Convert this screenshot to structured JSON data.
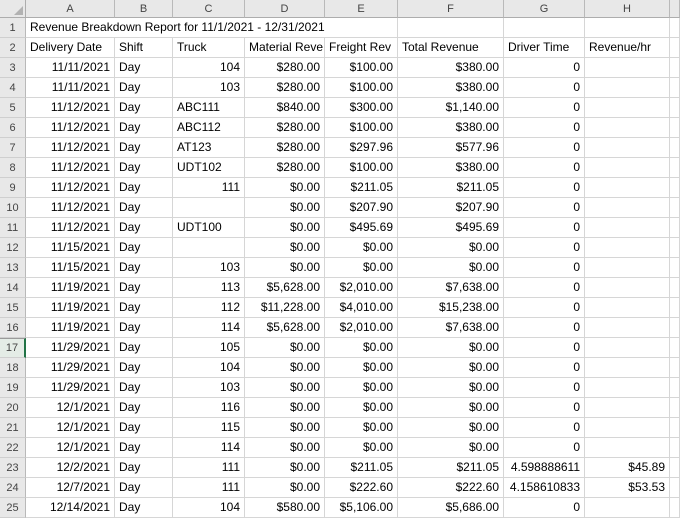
{
  "sheet": {
    "active_row": 17,
    "column_letters": [
      "A",
      "B",
      "C",
      "D",
      "E",
      "F",
      "G",
      "H"
    ],
    "title": "Revenue Breakdown Report for 11/1/2021 - 12/31/2021",
    "header_cells": [
      "Delivery Date",
      "Shift",
      "Truck",
      "Material Reve",
      "Freight Rev",
      "Total Revenue",
      "Driver Time",
      "Revenue/hr"
    ],
    "colors": {
      "grid_line": "#d6d6d6",
      "header_bg": "#e8e8e8",
      "active_green": "#217346"
    },
    "rows": [
      {
        "n": 1,
        "type": "title",
        "cells": [
          "Revenue Breakdown Report for 11/1/2021 - 12/31/2021"
        ]
      },
      {
        "n": 2,
        "type": "header",
        "cells": [
          "Delivery Date",
          "Shift",
          "Truck",
          "Material Reve",
          "Freight Rev",
          "Total Revenue",
          "Driver Time",
          "Revenue/hr"
        ]
      },
      {
        "n": 3,
        "type": "data",
        "cells": [
          "11/11/2021",
          "Day",
          "104",
          "$280.00",
          "$100.00",
          "$380.00",
          "0",
          ""
        ]
      },
      {
        "n": 4,
        "type": "data",
        "cells": [
          "11/11/2021",
          "Day",
          "103",
          "$280.00",
          "$100.00",
          "$380.00",
          "0",
          ""
        ]
      },
      {
        "n": 5,
        "type": "data",
        "cells": [
          "11/12/2021",
          "Day",
          "ABC111",
          "$840.00",
          "$300.00",
          "$1,140.00",
          "0",
          ""
        ]
      },
      {
        "n": 6,
        "type": "data",
        "cells": [
          "11/12/2021",
          "Day",
          "ABC112",
          "$280.00",
          "$100.00",
          "$380.00",
          "0",
          ""
        ]
      },
      {
        "n": 7,
        "type": "data",
        "cells": [
          "11/12/2021",
          "Day",
          "AT123",
          "$280.00",
          "$297.96",
          "$577.96",
          "0",
          ""
        ]
      },
      {
        "n": 8,
        "type": "data",
        "cells": [
          "11/12/2021",
          "Day",
          "UDT102",
          "$280.00",
          "$100.00",
          "$380.00",
          "0",
          ""
        ]
      },
      {
        "n": 9,
        "type": "data",
        "cells": [
          "11/12/2021",
          "Day",
          "111",
          "$0.00",
          "$211.05",
          "$211.05",
          "0",
          ""
        ]
      },
      {
        "n": 10,
        "type": "data",
        "cells": [
          "11/12/2021",
          "Day",
          "",
          "$0.00",
          "$207.90",
          "$207.90",
          "0",
          ""
        ]
      },
      {
        "n": 11,
        "type": "data",
        "cells": [
          "11/12/2021",
          "Day",
          "UDT100",
          "$0.00",
          "$495.69",
          "$495.69",
          "0",
          ""
        ]
      },
      {
        "n": 12,
        "type": "data",
        "cells": [
          "11/15/2021",
          "Day",
          "",
          "$0.00",
          "$0.00",
          "$0.00",
          "0",
          ""
        ]
      },
      {
        "n": 13,
        "type": "data",
        "cells": [
          "11/15/2021",
          "Day",
          "103",
          "$0.00",
          "$0.00",
          "$0.00",
          "0",
          ""
        ]
      },
      {
        "n": 14,
        "type": "data",
        "cells": [
          "11/19/2021",
          "Day",
          "113",
          "$5,628.00",
          "$2,010.00",
          "$7,638.00",
          "0",
          ""
        ]
      },
      {
        "n": 15,
        "type": "data",
        "cells": [
          "11/19/2021",
          "Day",
          "112",
          "$11,228.00",
          "$4,010.00",
          "$15,238.00",
          "0",
          ""
        ]
      },
      {
        "n": 16,
        "type": "data",
        "cells": [
          "11/19/2021",
          "Day",
          "114",
          "$5,628.00",
          "$2,010.00",
          "$7,638.00",
          "0",
          ""
        ]
      },
      {
        "n": 17,
        "type": "data",
        "cells": [
          "11/29/2021",
          "Day",
          "105",
          "$0.00",
          "$0.00",
          "$0.00",
          "0",
          ""
        ]
      },
      {
        "n": 18,
        "type": "data",
        "cells": [
          "11/29/2021",
          "Day",
          "104",
          "$0.00",
          "$0.00",
          "$0.00",
          "0",
          ""
        ]
      },
      {
        "n": 19,
        "type": "data",
        "cells": [
          "11/29/2021",
          "Day",
          "103",
          "$0.00",
          "$0.00",
          "$0.00",
          "0",
          ""
        ]
      },
      {
        "n": 20,
        "type": "data",
        "cells": [
          "12/1/2021",
          "Day",
          "116",
          "$0.00",
          "$0.00",
          "$0.00",
          "0",
          ""
        ]
      },
      {
        "n": 21,
        "type": "data",
        "cells": [
          "12/1/2021",
          "Day",
          "115",
          "$0.00",
          "$0.00",
          "$0.00",
          "0",
          ""
        ]
      },
      {
        "n": 22,
        "type": "data",
        "cells": [
          "12/1/2021",
          "Day",
          "114",
          "$0.00",
          "$0.00",
          "$0.00",
          "0",
          ""
        ]
      },
      {
        "n": 23,
        "type": "data",
        "cells": [
          "12/2/2021",
          "Day",
          "111",
          "$0.00",
          "$211.05",
          "$211.05",
          "4.598888611",
          "$45.89"
        ]
      },
      {
        "n": 24,
        "type": "data",
        "cells": [
          "12/7/2021",
          "Day",
          "111",
          "$0.00",
          "$222.60",
          "$222.60",
          "4.158610833",
          "$53.53"
        ]
      },
      {
        "n": 25,
        "type": "data",
        "cells": [
          "12/14/2021",
          "Day",
          "104",
          "$580.00",
          "$5,106.00",
          "$5,686.00",
          "0",
          ""
        ]
      }
    ]
  }
}
